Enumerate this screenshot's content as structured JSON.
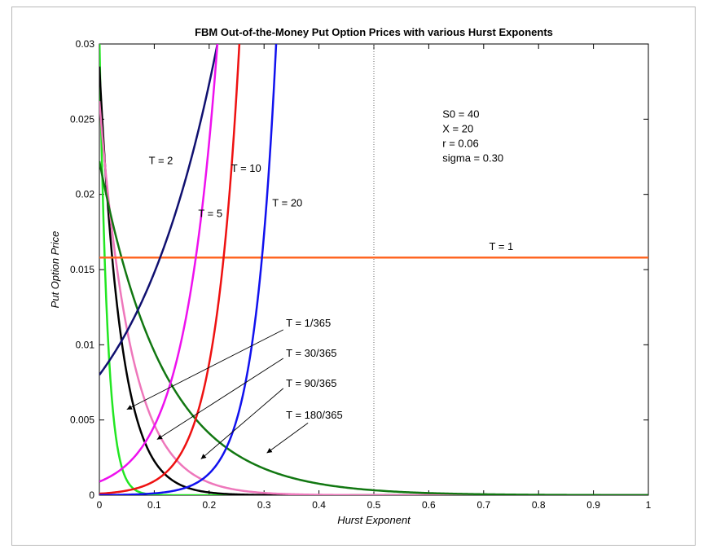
{
  "chart_data": {
    "type": "line",
    "title": "FBM Out-of-the-Money Put Option Prices with various Hurst Exponents",
    "xlabel": "Hurst Exponent",
    "ylabel": "Put Option Price",
    "xlim": [
      0,
      1
    ],
    "ylim": [
      0,
      0.03
    ],
    "xticks": [
      "0",
      "0.1",
      "0.2",
      "0.3",
      "0.4",
      "0.5",
      "0.6",
      "0.7",
      "0.8",
      "0.9",
      "1"
    ],
    "yticks": [
      "0",
      "0.005",
      "0.01",
      "0.015",
      "0.02",
      "0.025",
      "0.03"
    ],
    "grid": false,
    "reference_line_x": 0.5,
    "parameters": [
      "S0 = 40",
      "X = 20",
      "r = 0.06",
      "sigma = 0.30"
    ],
    "series": [
      {
        "name": "T = 1/365",
        "color": "#22e622",
        "y0": 0.0305,
        "y_ref": 0.0005,
        "x_ref": 0.06,
        "x_end": 0.1
      },
      {
        "name": "T = 30/365",
        "color": "#000000",
        "y0": 0.0285,
        "y_ref": 0.0005,
        "x_ref": 0.16,
        "x_end": 0.25
      },
      {
        "name": "T = 90/365",
        "color": "#ee77bb",
        "y0": 0.0262,
        "y_ref": 0.0005,
        "x_ref": 0.23,
        "x_end": 0.38
      },
      {
        "name": "T = 180/365",
        "color": "#117711",
        "y0": 0.0222,
        "y_ref": 0.0005,
        "x_ref": 0.45,
        "x_end": 0.7
      },
      {
        "name": "T = 1",
        "color": "#ff6622",
        "y0": 0.0158,
        "y_ref": 0.0158,
        "x_ref": 1.0,
        "x_end": 1.0
      },
      {
        "name": "T = 2",
        "color": "#101070",
        "y0": 0.008,
        "y_ref": 0.03,
        "x_ref": 0.215,
        "x_end": 0.215
      },
      {
        "name": "T = 5",
        "color": "#ee11ee",
        "y0": 0.0009,
        "y_ref": 0.03,
        "x_ref": 0.215,
        "x_end": 0.215
      },
      {
        "name": "T = 10",
        "color": "#ee1111",
        "y0": 0.0001,
        "y_ref": 0.03,
        "x_ref": 0.255,
        "x_end": 0.255
      },
      {
        "name": "T = 20",
        "color": "#1111ee",
        "y0": 1e-05,
        "y_ref": 0.03,
        "x_ref": 0.322,
        "x_end": 0.322
      }
    ],
    "annotations": [
      {
        "text": "T = 2",
        "x": 0.09,
        "y": 0.022
      },
      {
        "text": "T = 5",
        "x": 0.18,
        "y": 0.0185
      },
      {
        "text": "T = 10",
        "x": 0.24,
        "y": 0.0215
      },
      {
        "text": "T = 20",
        "x": 0.315,
        "y": 0.0192
      },
      {
        "text": "T = 1",
        "x": 0.71,
        "y": 0.0163
      },
      {
        "text": "T = 1/365",
        "x": 0.34,
        "y": 0.0112
      },
      {
        "text": "T = 30/365",
        "x": 0.34,
        "y": 0.0092
      },
      {
        "text": "T = 90/365",
        "x": 0.34,
        "y": 0.0072
      },
      {
        "text": "T = 180/365",
        "x": 0.34,
        "y": 0.0051
      }
    ],
    "arrows": [
      {
        "from": [
          0.335,
          0.011
        ],
        "to": [
          0.05,
          0.0057
        ]
      },
      {
        "from": [
          0.335,
          0.0091
        ],
        "to": [
          0.105,
          0.0037
        ]
      },
      {
        "from": [
          0.335,
          0.0071
        ],
        "to": [
          0.185,
          0.0024
        ]
      },
      {
        "from": [
          0.38,
          0.0048
        ],
        "to": [
          0.305,
          0.0028
        ]
      }
    ]
  }
}
